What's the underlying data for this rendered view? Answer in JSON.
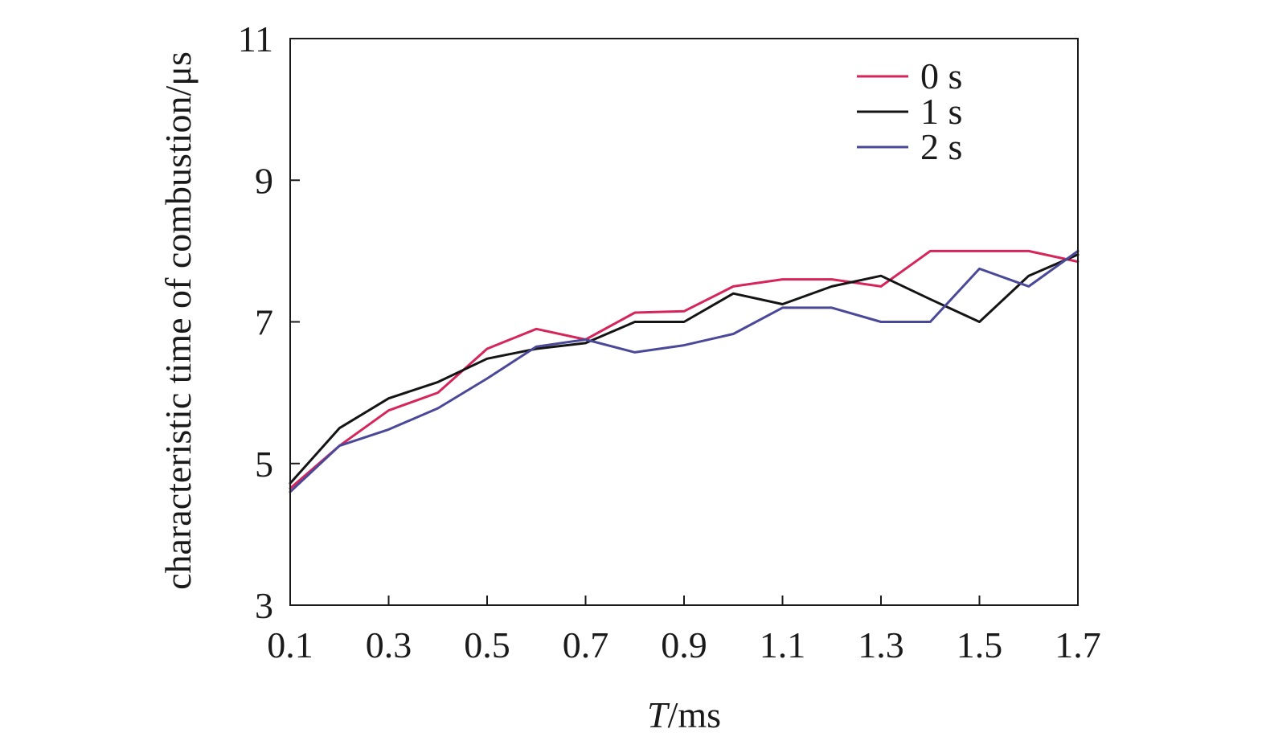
{
  "chart_data": {
    "type": "line",
    "xlabel_italic": "T",
    "xlabel_rest": "/ms",
    "ylabel": "characteristic time of combustion/μs",
    "xlim": [
      0.1,
      1.7
    ],
    "ylim": [
      3,
      11
    ],
    "x_ticks": [
      "0.1",
      "0.3",
      "0.5",
      "0.7",
      "0.9",
      "1.1",
      "1.3",
      "1.5",
      "1.7"
    ],
    "y_ticks": [
      "3",
      "5",
      "7",
      "9",
      "11"
    ],
    "grid": false,
    "legend_position": "top-right",
    "x": [
      0.1,
      0.2,
      0.3,
      0.4,
      0.5,
      0.6,
      0.7,
      0.8,
      0.9,
      1.0,
      1.1,
      1.2,
      1.3,
      1.4,
      1.5,
      1.6,
      1.7
    ],
    "series": [
      {
        "name": "0 s",
        "color": "#d6255a",
        "values": [
          4.65,
          5.25,
          5.75,
          6.0,
          6.62,
          6.9,
          6.75,
          7.13,
          7.15,
          7.5,
          7.6,
          7.6,
          7.5,
          8.0,
          8.0,
          8.0,
          7.85
        ]
      },
      {
        "name": "1 s",
        "color": "#141414",
        "values": [
          4.72,
          5.5,
          5.92,
          6.15,
          6.48,
          6.62,
          6.7,
          7.0,
          7.0,
          7.4,
          7.25,
          7.5,
          7.65,
          7.32,
          7.0,
          7.65,
          7.95
        ]
      },
      {
        "name": "2 s",
        "color": "#4a4898",
        "values": [
          4.6,
          5.25,
          5.48,
          5.78,
          6.2,
          6.65,
          6.75,
          6.57,
          6.67,
          6.83,
          7.2,
          7.2,
          7.0,
          7.0,
          7.75,
          7.5,
          8.0
        ]
      }
    ]
  }
}
